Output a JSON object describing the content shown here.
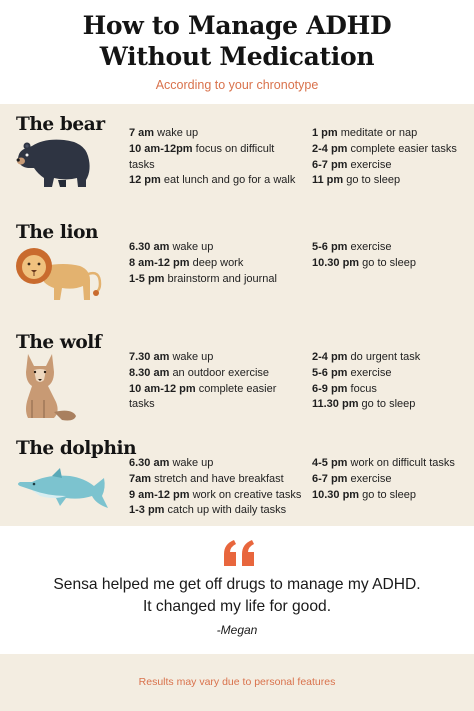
{
  "header": {
    "title_line1": "How to Manage ADHD",
    "title_line2": "Without Medication",
    "subtitle": "According to your chronotype"
  },
  "colors": {
    "accent": "#d9724c",
    "panel_bg": "#f3ede1",
    "quote_mark": "#e8663d"
  },
  "sections": [
    {
      "name": "The bear",
      "icon": "bear-icon",
      "left": [
        {
          "time": "7 am",
          "activity": "wake up"
        },
        {
          "time": "10 am-12pm",
          "activity": "focus on difficult tasks"
        },
        {
          "time": "12 pm",
          "activity": "eat lunch and go for a walk"
        }
      ],
      "right": [
        {
          "time": "1 pm",
          "activity": "meditate or nap"
        },
        {
          "time": "2-4 pm",
          "activity": "complete easier tasks"
        },
        {
          "time": "6-7 pm",
          "activity": "exercise"
        },
        {
          "time": "11 pm",
          "activity": "go to sleep"
        }
      ]
    },
    {
      "name": "The lion",
      "icon": "lion-icon",
      "left": [
        {
          "time": "6.30 am",
          "activity": "wake up"
        },
        {
          "time": "8 am-12 pm",
          "activity": "deep work"
        },
        {
          "time": "1-5 pm",
          "activity": "brainstorm and journal"
        }
      ],
      "right": [
        {
          "time": "5-6 pm",
          "activity": "exercise"
        },
        {
          "time": "10.30 pm",
          "activity": "go to sleep"
        }
      ]
    },
    {
      "name": "The wolf",
      "icon": "wolf-icon",
      "left": [
        {
          "time": "7.30 am",
          "activity": "wake up"
        },
        {
          "time": "8.30 am",
          "activity": "an outdoor exercise"
        },
        {
          "time": "10 am-12 pm",
          "activity": "complete easier tasks"
        }
      ],
      "right": [
        {
          "time": "2-4 pm",
          "activity": "do urgent task"
        },
        {
          "time": "5-6 pm",
          "activity": "exercise"
        },
        {
          "time": "6-9 pm",
          "activity": "focus"
        },
        {
          "time": "11.30 pm",
          "activity": "go to sleep"
        }
      ]
    },
    {
      "name": "The dolphin",
      "icon": "dolphin-icon",
      "left": [
        {
          "time": "6.30 am",
          "activity": "wake up"
        },
        {
          "time": "7am",
          "activity": "stretch and have breakfast"
        },
        {
          "time": "9 am-12 pm",
          "activity": "work on creative tasks"
        },
        {
          "time": "1-3 pm",
          "activity": "catch up with daily tasks"
        }
      ],
      "right": [
        {
          "time": "4-5 pm",
          "activity": "work on difficult tasks"
        },
        {
          "time": "6-7 pm",
          "activity": "exercise"
        },
        {
          "time": "10.30 pm",
          "activity": "go to sleep"
        }
      ]
    }
  ],
  "quote": {
    "line1": "Sensa helped me get off drugs to manage my ADHD.",
    "line2": "It changed my life for good.",
    "author": "-Megan"
  },
  "footer": {
    "text": "Results may vary due to personal features"
  }
}
